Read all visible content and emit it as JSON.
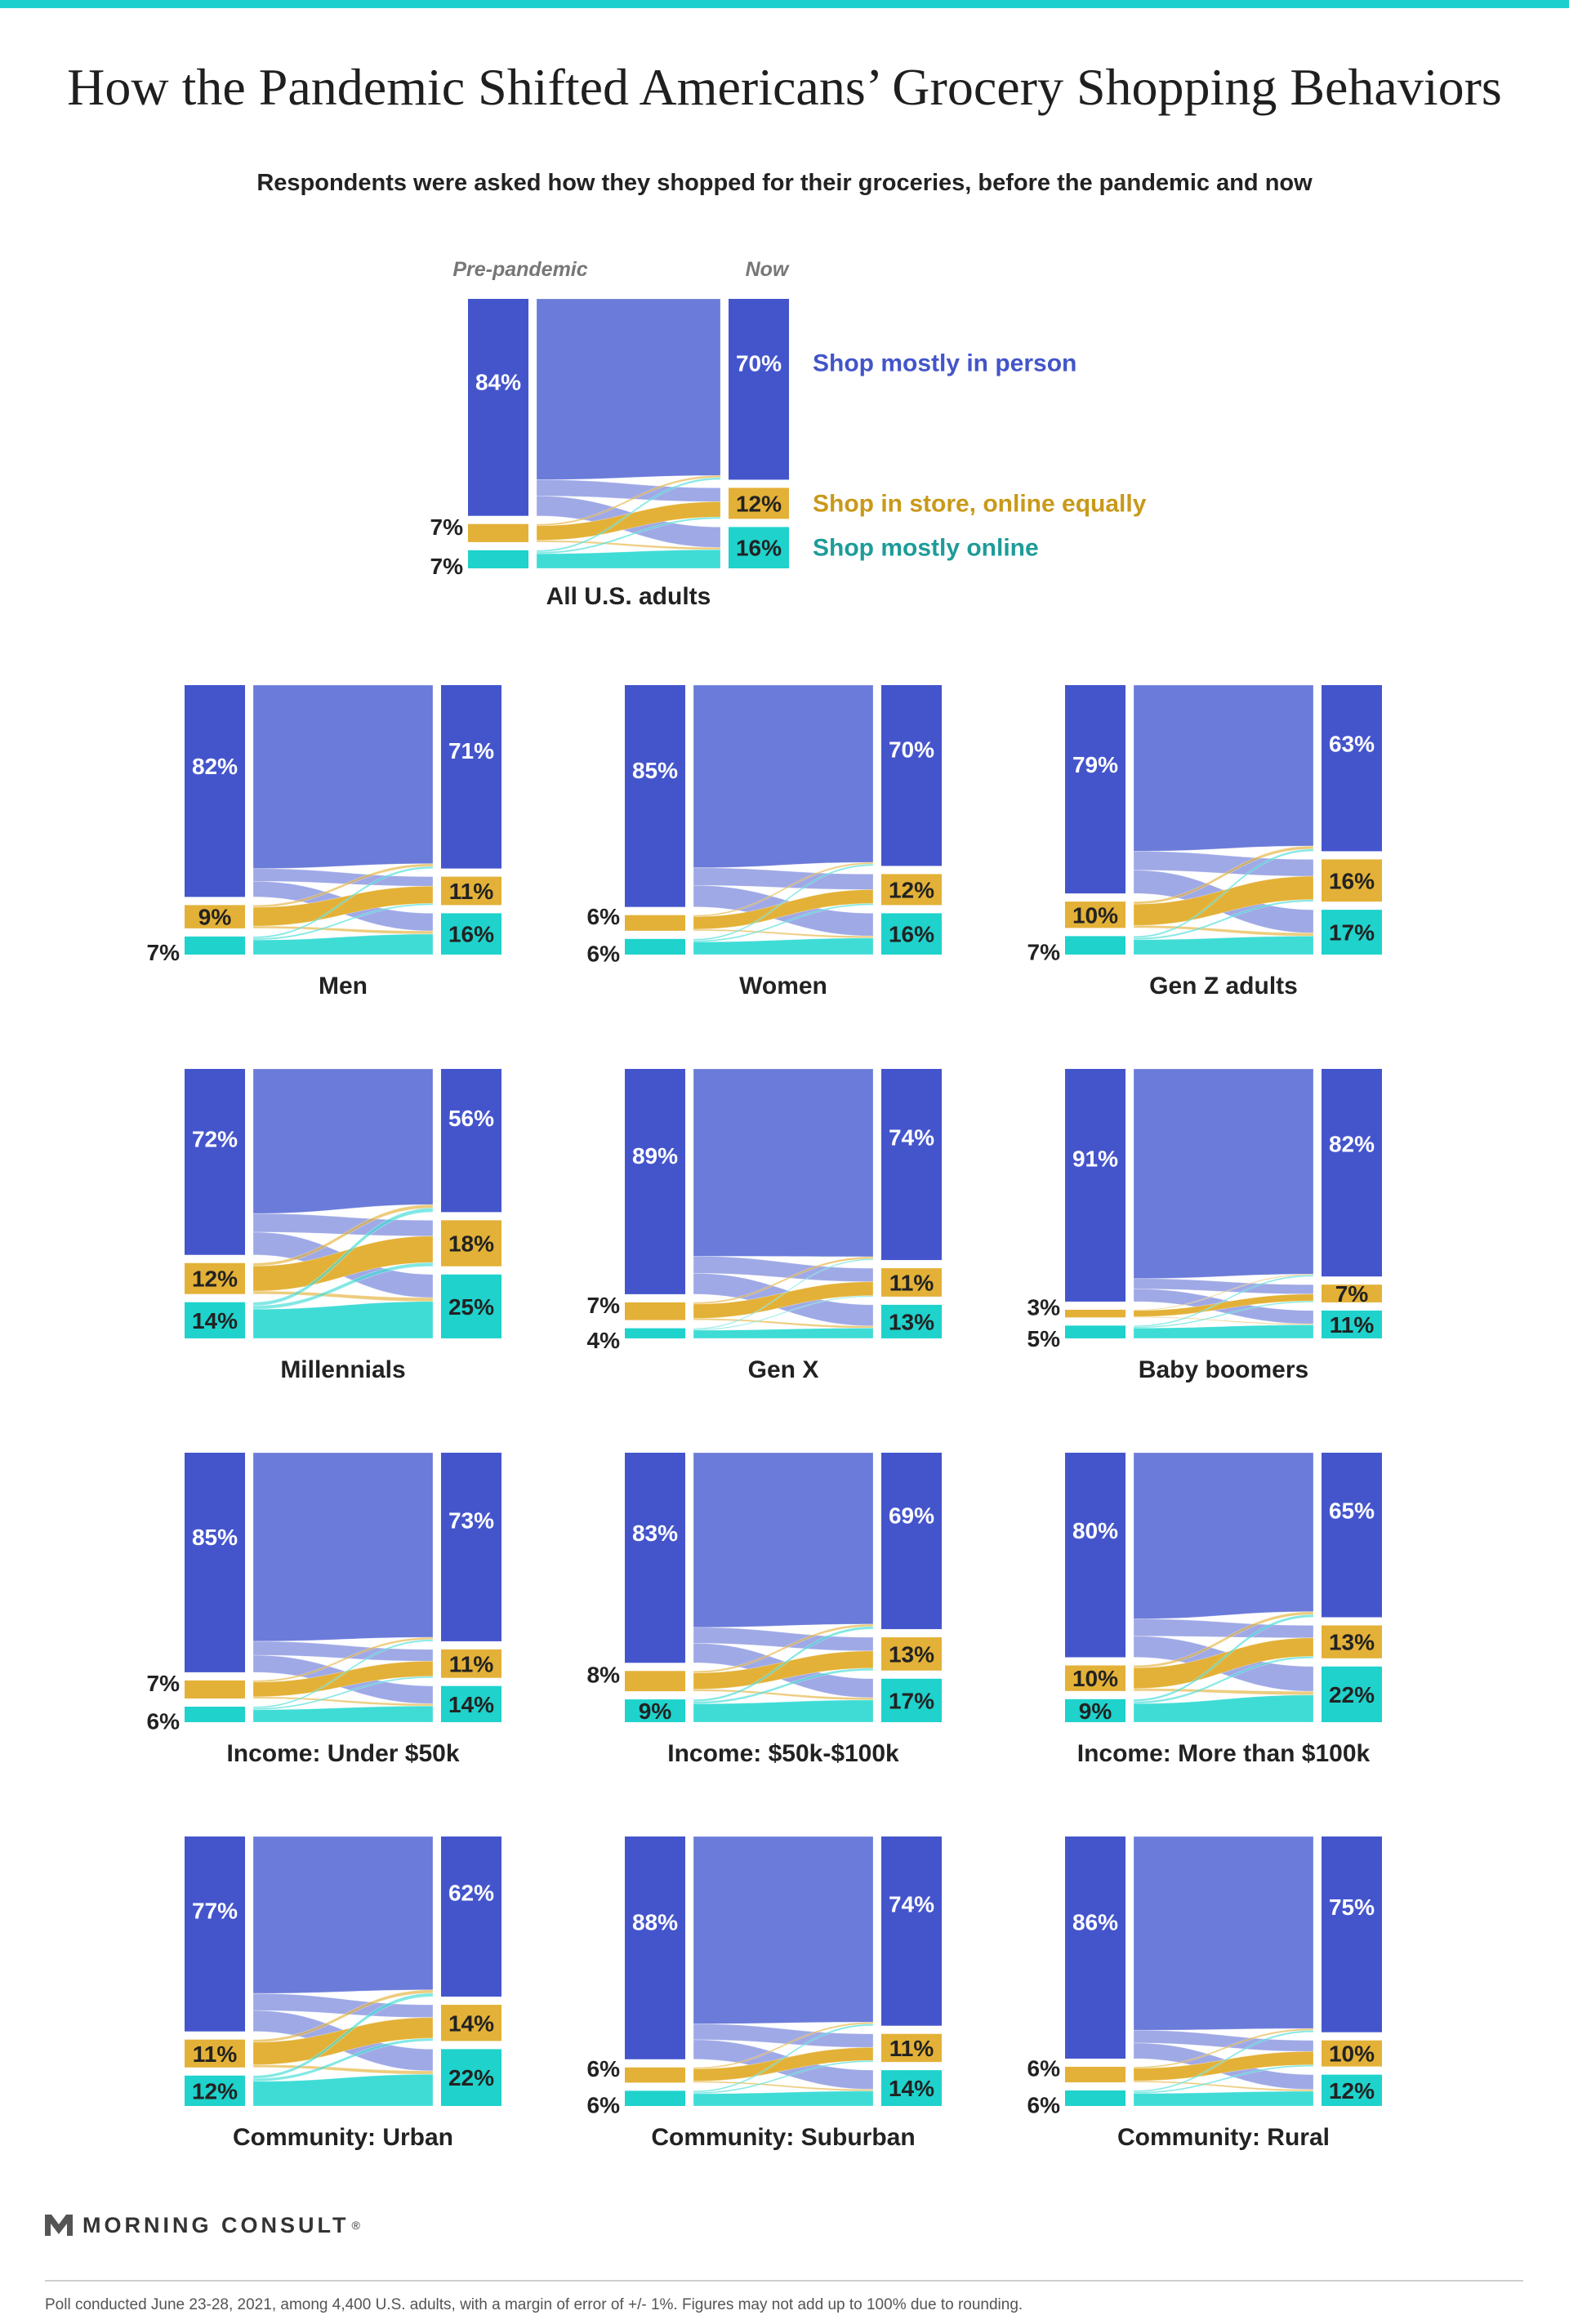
{
  "title": "How the Pandemic Shifted Americans’ Grocery Shopping Behaviors",
  "subtitle": "Respondents were asked how they shopped for their groceries, before the pandemic and now",
  "column_labels": {
    "pre": "Pre-pandemic",
    "now": "Now"
  },
  "legend": [
    {
      "key": "in_person",
      "label": "Shop mostly in person",
      "color": "#4355c9"
    },
    {
      "key": "equal",
      "label": "Shop in store, online equally",
      "color": "#c9991a"
    },
    {
      "key": "online",
      "label": "Shop mostly online",
      "color": "#1e9c99"
    }
  ],
  "colors": {
    "in_person_bar": "#4455cc",
    "in_person_flow": "#6b7bd9",
    "equal_bar": "#e3b137",
    "online_bar": "#1fd2cc",
    "online_flow": "#3fdcd6"
  },
  "chart_data": {
    "type": "sankey",
    "categories": [
      "Shop mostly in person",
      "Shop in store, online equally",
      "Shop mostly online"
    ],
    "unit": "%",
    "groups": [
      {
        "name": "All U.S. adults",
        "pre": [
          84,
          7,
          7
        ],
        "now": [
          70,
          12,
          16
        ]
      },
      {
        "name": "Men",
        "pre": [
          82,
          9,
          7
        ],
        "now": [
          71,
          11,
          16
        ]
      },
      {
        "name": "Women",
        "pre": [
          85,
          6,
          6
        ],
        "now": [
          70,
          12,
          16
        ]
      },
      {
        "name": "Gen Z adults",
        "pre": [
          79,
          10,
          7
        ],
        "now": [
          63,
          16,
          17
        ]
      },
      {
        "name": "Millennials",
        "pre": [
          72,
          12,
          14
        ],
        "now": [
          56,
          18,
          25
        ]
      },
      {
        "name": "Gen X",
        "pre": [
          89,
          7,
          4
        ],
        "now": [
          74,
          11,
          13
        ]
      },
      {
        "name": "Baby boomers",
        "pre": [
          91,
          3,
          5
        ],
        "now": [
          82,
          7,
          11
        ]
      },
      {
        "name": "Income: Under $50k",
        "pre": [
          85,
          7,
          6
        ],
        "now": [
          73,
          11,
          14
        ]
      },
      {
        "name": "Income: $50k-$100k",
        "pre": [
          83,
          8,
          9
        ],
        "now": [
          69,
          13,
          17
        ]
      },
      {
        "name": "Income: More than $100k",
        "pre": [
          80,
          10,
          9
        ],
        "now": [
          65,
          13,
          22
        ]
      },
      {
        "name": "Community: Urban",
        "pre": [
          77,
          11,
          12
        ],
        "now": [
          62,
          14,
          22
        ]
      },
      {
        "name": "Community: Suburban",
        "pre": [
          88,
          6,
          6
        ],
        "now": [
          74,
          11,
          14
        ]
      },
      {
        "name": "Community: Rural",
        "pre": [
          86,
          6,
          6
        ],
        "now": [
          75,
          10,
          12
        ]
      }
    ]
  },
  "logo": {
    "text": "MORNING CONSULT",
    "mark": "®"
  },
  "footnote": "Poll conducted June 23-28, 2021, among 4,400 U.S. adults, with a margin of error of +/- 1%. Figures may not add up to 100% due to rounding."
}
